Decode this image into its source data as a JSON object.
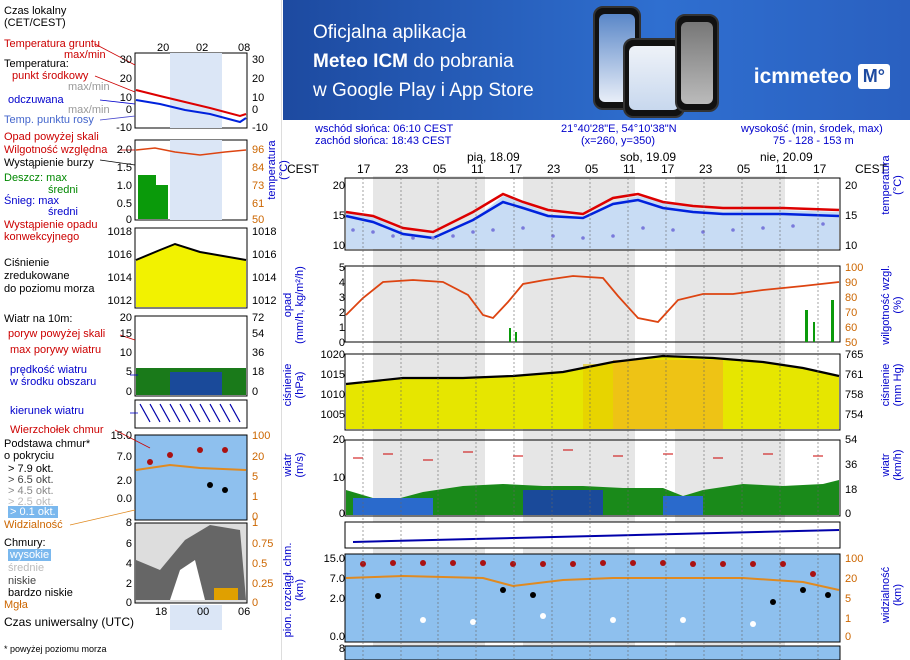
{
  "legend": {
    "time_local": "Czas lokalny\n(CET/CEST)",
    "top_ticks": [
      "20",
      "02",
      "08"
    ],
    "soil_temp": "Temperatura gruntu",
    "soil_maxmin": "max/min",
    "temperature": "Temperatura:",
    "mid_point": "punkt środkowy",
    "max_min": "max/min",
    "feels_like": "odczuwana",
    "feels_maxmin": "max/min",
    "dew_point": "Temp. punktu rosy",
    "temp_ticks_left": [
      "30",
      "20",
      "10",
      "0",
      "-10"
    ],
    "temp_ticks_right": [
      "30",
      "20",
      "10",
      "0",
      "-10"
    ],
    "precip_above": "Opad powyżej skali",
    "rel_humidity": "Wilgotność względna",
    "storm": "Wystąpienie burzy",
    "rain_max": "Deszcz: max",
    "rain_mid": "średni",
    "snow_max": "Śnieg: max",
    "snow_mid": "średni",
    "convective": "Wystąpienie opadu\nkonwekcyjnego",
    "precip_ticks_left": [
      "2.0",
      "1.5",
      "1.0",
      "0.5",
      "0"
    ],
    "precip_ticks_right": [
      "96",
      "84",
      "73",
      "61",
      "50"
    ],
    "pressure": "Ciśnienie\nzredukowane\ndo poziomu morza",
    "pressure_ticks_left": [
      "1018",
      "1016",
      "1014",
      "1012"
    ],
    "pressure_ticks_right": [
      "1018",
      "1016",
      "1014",
      "1012"
    ],
    "wind_10m": "Wiatr na 10m:",
    "gust_above": "poryw powyżej skali",
    "max_gusts": "max porywy wiatru",
    "wind_speed_area": "prędkość wiatru\nw środku obszaru",
    "wind_ticks_left": [
      "20",
      "15",
      "10",
      "5",
      "0"
    ],
    "wind_ticks_right": [
      "72",
      "54",
      "36",
      "18",
      "0"
    ],
    "wind_dir": "kierunek wiatru",
    "cloud_top": "Wierzchołek chmur",
    "cloud_base": "Podstawa chmur*\no pokryciu",
    "okt_79": "> 7.9 okt.",
    "okt_65": "> 6.5 okt.",
    "okt_45": "> 4.5 okt.",
    "okt_25": "> 2.5 okt.",
    "okt_01": "> 0.1 okt.",
    "cloud_ticks_left": [
      "15.0",
      "7.0",
      "2.0",
      "0.0"
    ],
    "cloud_ticks_right": [
      "100",
      "20",
      "5",
      "1",
      "0"
    ],
    "visibility": "Widzialność",
    "clouds": "Chmury:",
    "high": "wysokie",
    "medium": "średnie",
    "low": "niskie",
    "very_low": "bardzo niskie",
    "fog": "Mgła",
    "cloudcov_ticks_left": [
      "8",
      "6",
      "4",
      "2",
      "0"
    ],
    "cloudcov_ticks_right": [
      "1",
      "0.75",
      "0.5",
      "0.25",
      "0"
    ],
    "utc_label": "Czas uniwersalny (UTC)",
    "bottom_ticks": [
      "18",
      "00",
      "06"
    ],
    "footnote": "* powyżej poziomu morza"
  },
  "banner": {
    "line1": "Oficjalna aplikacja",
    "line2_bold": "Meteo ICM",
    "line2_rest": " do pobrania",
    "line3": "w Google Play i App Store",
    "logo_text": "icmmeteo",
    "logo_badge": "M°"
  },
  "info": {
    "sunrise": "wschód słońca: 06:10 CEST",
    "sunset": "zachód słońca: 18:43 CEST",
    "coords": "21°40'28\"E, 54°10'38\"N",
    "grid": "(x=260,  y=350)",
    "elev_label": "wysokość (min, środek, max)",
    "elev_values": "75 - 128 - 153 m"
  },
  "main": {
    "tz_left": "CEST",
    "tz_right": "CEST",
    "days": [
      "pią, 18.09",
      "sob, 19.09",
      "nie, 20.09"
    ],
    "hours": [
      "17",
      "23",
      "05",
      "11",
      "17",
      "23",
      "05",
      "11",
      "17",
      "23",
      "05",
      "11",
      "17"
    ],
    "temp_axis": "temperatura\n(°C)",
    "temp_ticks": [
      "20",
      "15",
      "10"
    ],
    "precip_axis": "opad\n(mm/h, kg/m²/h)",
    "precip_ticks": [
      "5",
      "4",
      "3",
      "2",
      "1",
      "0"
    ],
    "hum_axis": "wilgotność wzgl.\n(%)",
    "hum_ticks": [
      "100",
      "90",
      "80",
      "70",
      "60",
      "50"
    ],
    "press_axis": "ciśnienie\n(hPa)",
    "press_ticks": [
      "1020",
      "1015",
      "1010",
      "1005"
    ],
    "press_mmhg_axis": "ciśnienie\n(mm Hg)",
    "press_mmhg_ticks": [
      "765",
      "761",
      "758",
      "754"
    ],
    "wind_axis": "wiatr\n(m/s)",
    "wind_ticks": [
      "20",
      "10",
      "0"
    ],
    "wind_kmh_axis": "wiatr\n(km/h)",
    "wind_kmh_ticks": [
      "54",
      "36",
      "18",
      "0"
    ],
    "cloud_axis": "pion. rozciągł. chm.\n(km)",
    "cloud_ticks": [
      "15.0",
      "7.0",
      "2.0",
      "0.0"
    ],
    "vis_axis": "widzialność\n(km)",
    "vis_ticks": [
      "100",
      "20",
      "5",
      "1",
      "0"
    ],
    "cov_tick": "8"
  },
  "colors": {
    "banner_bg": "#2a60c0",
    "temp_red": "#dd0000",
    "temp_blue": "#0022dd",
    "humidity": "#dd4411",
    "pressure_fill": "#e0e000",
    "wind_fill": "#1a8a1a",
    "cloud_bg": "#88bbee"
  }
}
